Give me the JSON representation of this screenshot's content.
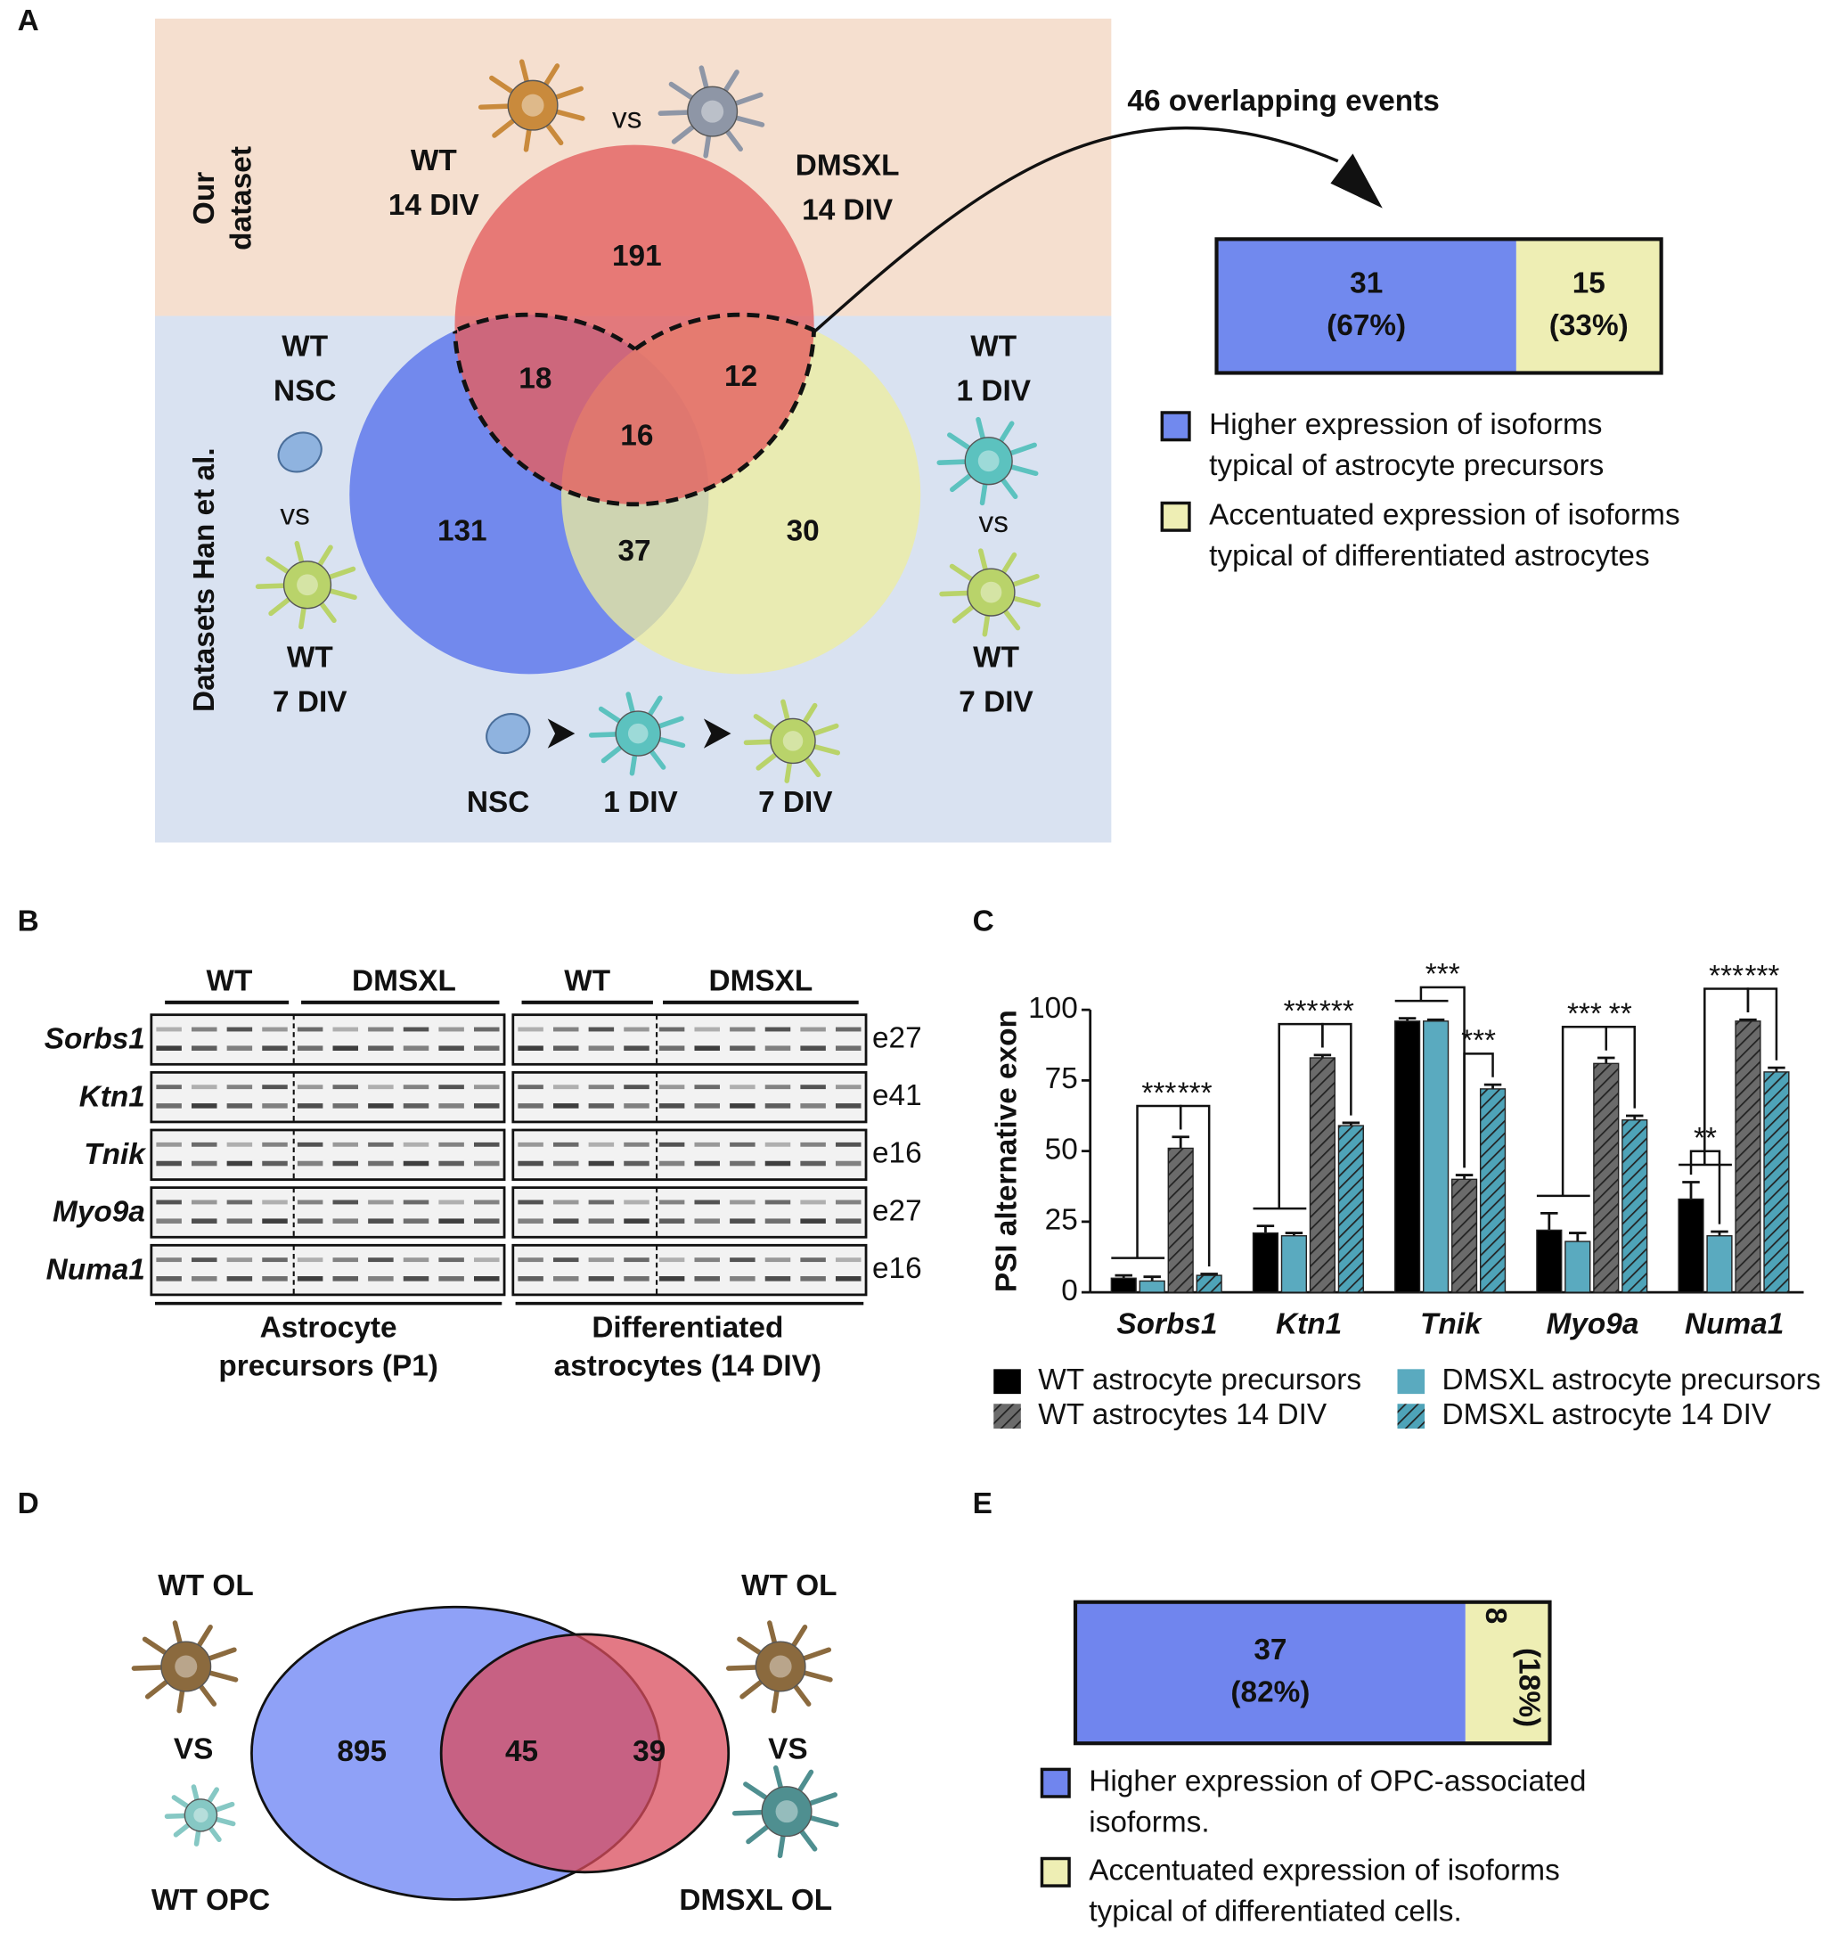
{
  "panel_labels": [
    "A",
    "B",
    "C",
    "D",
    "E"
  ],
  "panel_a": {
    "dataset_labels": {
      "ours": [
        "Our",
        "dataset"
      ],
      "han": "Datasets Han et al."
    },
    "comparisons": {
      "top_left": [
        "WT",
        "14 DIV"
      ],
      "top_right": [
        "DMSXL",
        "14 DIV"
      ],
      "top_vs": "vs",
      "left_top": [
        "WT",
        "NSC"
      ],
      "left_vs": "vs",
      "left_bottom": [
        "WT",
        "7 DIV"
      ],
      "right_top": [
        "WT",
        "1 DIV"
      ],
      "right_vs": "vs",
      "right_bottom": [
        "WT",
        "7 DIV"
      ],
      "timeline": [
        "NSC",
        "1 DIV",
        "7 DIV"
      ]
    },
    "venn": {
      "red_only": 191,
      "red_blue": 18,
      "red_yellow": 12,
      "all": 16,
      "blue_only": 131,
      "blue_yellow": 37,
      "yellow_only": 30
    },
    "overlap_title": "46 overlapping events",
    "split": {
      "values": [
        31,
        15
      ],
      "percents": [
        "(67%)",
        "(33%)"
      ],
      "colors": [
        "#7189ee",
        "#eeeeb4"
      ]
    },
    "legend": [
      [
        "Higher expression of isoforms",
        "typical of astrocyte precursors"
      ],
      [
        "Accentuated expression of  isoforms",
        "typical of differentiated astrocytes"
      ]
    ]
  },
  "panel_b": {
    "column_headers": [
      "WT",
      "DMSXL",
      "WT",
      "DMSXL"
    ],
    "genes": [
      "Sorbs1",
      "Ktn1",
      "Tnik",
      "Myo9a",
      "Numa1"
    ],
    "exons": [
      "e27",
      "e41",
      "e16",
      "e27",
      "e16"
    ],
    "conditions": [
      [
        "Astrocyte",
        "precursors (P1)"
      ],
      [
        "Differentiated",
        "astrocytes (14 DIV)"
      ]
    ]
  },
  "chart_data": {
    "type": "bar",
    "y_label": "PSI alternative exon",
    "categories": [
      "Sorbs1",
      "Ktn1",
      "Tnik",
      "Myo9a",
      "Numa1"
    ],
    "series": [
      {
        "name": "WT astrocyte precursors",
        "color": "#000000",
        "hatched": false,
        "values": [
          5,
          21,
          96,
          22,
          33
        ],
        "errors": [
          1,
          2.5,
          1,
          6,
          6
        ]
      },
      {
        "name": "DMSXL astrocyte precursors",
        "color": "#5aaabf",
        "hatched": false,
        "values": [
          4,
          20,
          96,
          18,
          20
        ],
        "errors": [
          1.5,
          1,
          0.5,
          3,
          1.5
        ]
      },
      {
        "name": "WT astrocytes 14 DIV",
        "color": "#6b6b6b",
        "hatched": true,
        "values": [
          51,
          83,
          40,
          81,
          96
        ],
        "errors": [
          4,
          1,
          1.5,
          2,
          0.5
        ]
      },
      {
        "name": "DMSXL astrocyte 14 DIV",
        "color": "#4ea3b8",
        "hatched": true,
        "values": [
          6,
          59,
          72,
          61,
          78
        ],
        "errors": [
          0.5,
          1,
          1.5,
          1.5,
          1.5
        ]
      }
    ],
    "significance": [
      [
        "***",
        "***"
      ],
      [
        "***",
        "***"
      ],
      [
        "***",
        "***"
      ],
      [
        "***",
        "**"
      ],
      [
        "**",
        "***",
        "***"
      ]
    ],
    "ylim": [
      0,
      100
    ],
    "yticks": [
      0,
      25,
      50,
      75,
      100
    ]
  },
  "panel_d": {
    "labels": {
      "left_top": "WT OL",
      "left_vs": "VS",
      "left_bottom": "WT OPC",
      "right_top": "WT OL",
      "right_vs": "VS",
      "right_bottom": "DMSXL OL"
    },
    "venn": {
      "blue_only": 895,
      "overlap": 45,
      "red_only": 39
    }
  },
  "panel_e": {
    "split": {
      "values": [
        37,
        8
      ],
      "percents": [
        "(82%)",
        "(18%)"
      ],
      "colors": [
        "#7085ee",
        "#eeeeb4"
      ]
    },
    "legend": [
      [
        "Higher expression of OPC-associated",
        "isoforms."
      ],
      [
        "Accentuated expression of isoforms",
        "typical of differentiated cells."
      ]
    ]
  }
}
